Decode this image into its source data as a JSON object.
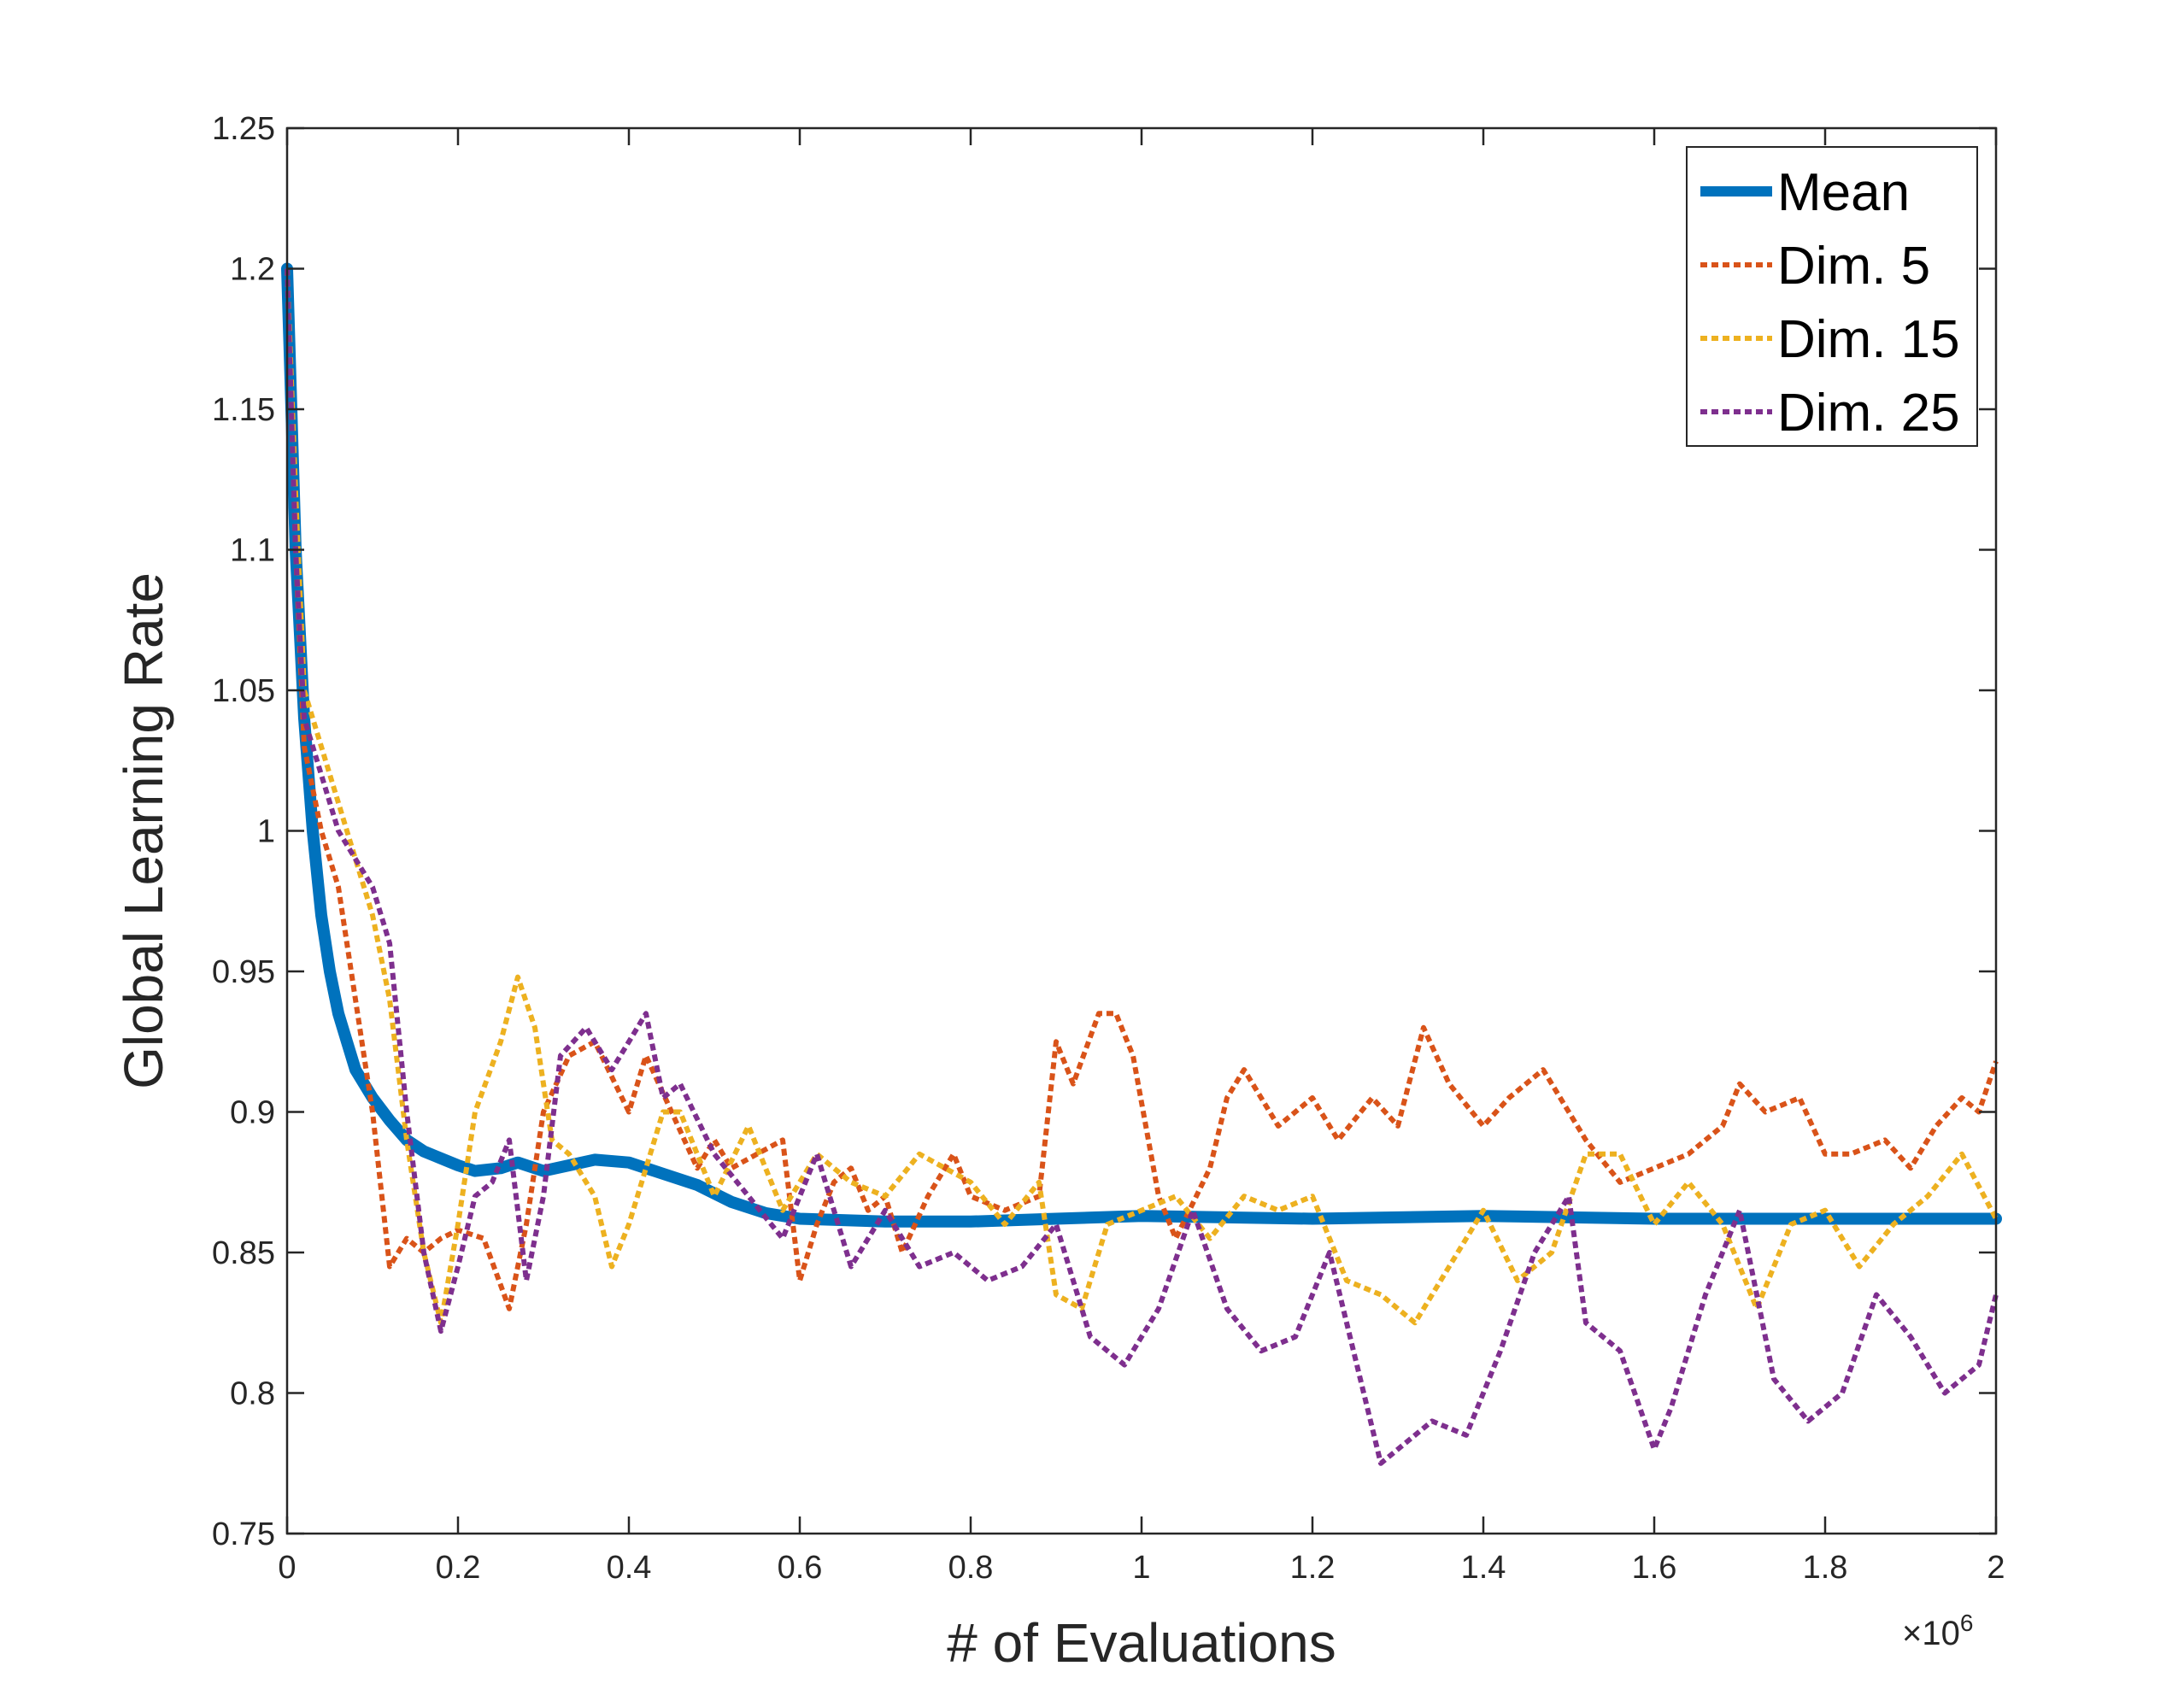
{
  "chart_data": {
    "type": "line",
    "title": "",
    "xlabel": "# of Evaluations",
    "ylabel": "Global Learning Rate",
    "x_multiplier_label": "×10",
    "x_multiplier_exponent": "6",
    "xlim": [
      0,
      2
    ],
    "ylim": [
      0.75,
      1.25
    ],
    "x_ticks": [
      "0",
      "0.2",
      "0.4",
      "0.6",
      "0.8",
      "1",
      "1.2",
      "1.4",
      "1.6",
      "1.8",
      "2"
    ],
    "y_ticks": [
      "0.75",
      "0.8",
      "0.85",
      "0.9",
      "0.95",
      "1",
      "1.05",
      "1.1",
      "1.15",
      "1.2",
      "1.25"
    ],
    "grid": false,
    "legend_position": "top-right",
    "series": [
      {
        "name": "Mean",
        "color": "#0072BD",
        "style": "solid",
        "x": [
          0,
          0.01,
          0.02,
          0.03,
          0.04,
          0.05,
          0.06,
          0.07,
          0.08,
          0.1,
          0.12,
          0.14,
          0.16,
          0.2,
          0.22,
          0.25,
          0.27,
          0.3,
          0.33,
          0.36,
          0.4,
          0.44,
          0.48,
          0.52,
          0.56,
          0.6,
          0.7,
          0.8,
          0.9,
          1.0,
          1.2,
          1.4,
          1.6,
          1.8,
          2.0
        ],
        "values": [
          1.2,
          1.1,
          1.04,
          1.0,
          0.97,
          0.95,
          0.935,
          0.925,
          0.915,
          0.905,
          0.897,
          0.89,
          0.886,
          0.881,
          0.879,
          0.88,
          0.882,
          0.879,
          0.881,
          0.883,
          0.882,
          0.878,
          0.874,
          0.868,
          0.864,
          0.862,
          0.861,
          0.861,
          0.862,
          0.863,
          0.862,
          0.863,
          0.862,
          0.862,
          0.862
        ]
      },
      {
        "name": "Dim. 5",
        "color": "#D95319",
        "style": "dotted",
        "x": [
          0,
          0.01,
          0.02,
          0.04,
          0.06,
          0.08,
          0.1,
          0.12,
          0.14,
          0.16,
          0.18,
          0.2,
          0.23,
          0.26,
          0.28,
          0.3,
          0.33,
          0.36,
          0.4,
          0.42,
          0.45,
          0.48,
          0.5,
          0.52,
          0.55,
          0.58,
          0.6,
          0.62,
          0.64,
          0.66,
          0.68,
          0.7,
          0.72,
          0.75,
          0.78,
          0.8,
          0.84,
          0.88,
          0.9,
          0.92,
          0.95,
          0.97,
          0.99,
          1.02,
          1.04,
          1.08,
          1.1,
          1.12,
          1.16,
          1.2,
          1.23,
          1.27,
          1.3,
          1.33,
          1.36,
          1.4,
          1.43,
          1.47,
          1.5,
          1.52,
          1.56,
          1.6,
          1.64,
          1.68,
          1.7,
          1.73,
          1.77,
          1.8,
          1.83,
          1.87,
          1.9,
          1.93,
          1.96,
          1.98,
          2.0
        ],
        "values": [
          1.2,
          1.1,
          1.03,
          1.0,
          0.98,
          0.94,
          0.9,
          0.845,
          0.855,
          0.85,
          0.855,
          0.858,
          0.855,
          0.83,
          0.86,
          0.9,
          0.92,
          0.925,
          0.9,
          0.92,
          0.9,
          0.88,
          0.89,
          0.88,
          0.885,
          0.89,
          0.84,
          0.86,
          0.875,
          0.88,
          0.865,
          0.87,
          0.85,
          0.87,
          0.885,
          0.87,
          0.865,
          0.87,
          0.925,
          0.91,
          0.935,
          0.935,
          0.92,
          0.87,
          0.855,
          0.88,
          0.905,
          0.915,
          0.895,
          0.905,
          0.89,
          0.905,
          0.895,
          0.93,
          0.91,
          0.895,
          0.905,
          0.915,
          0.9,
          0.89,
          0.875,
          0.88,
          0.885,
          0.895,
          0.91,
          0.9,
          0.905,
          0.885,
          0.885,
          0.89,
          0.88,
          0.895,
          0.905,
          0.9,
          0.918
        ]
      },
      {
        "name": "Dim. 15",
        "color": "#EDB120",
        "style": "dotted",
        "x": [
          0,
          0.01,
          0.02,
          0.04,
          0.06,
          0.08,
          0.1,
          0.12,
          0.14,
          0.16,
          0.18,
          0.2,
          0.22,
          0.25,
          0.27,
          0.29,
          0.31,
          0.33,
          0.36,
          0.38,
          0.4,
          0.42,
          0.44,
          0.46,
          0.5,
          0.54,
          0.58,
          0.62,
          0.66,
          0.7,
          0.74,
          0.8,
          0.84,
          0.88,
          0.9,
          0.93,
          0.96,
          1.0,
          1.04,
          1.08,
          1.12,
          1.16,
          1.2,
          1.24,
          1.28,
          1.32,
          1.36,
          1.4,
          1.44,
          1.48,
          1.52,
          1.56,
          1.6,
          1.64,
          1.68,
          1.72,
          1.76,
          1.8,
          1.84,
          1.88,
          1.92,
          1.96,
          2.0
        ],
        "values": [
          1.2,
          1.12,
          1.05,
          1.03,
          1.01,
          0.99,
          0.97,
          0.94,
          0.89,
          0.85,
          0.825,
          0.86,
          0.9,
          0.925,
          0.948,
          0.93,
          0.89,
          0.885,
          0.87,
          0.845,
          0.86,
          0.88,
          0.9,
          0.9,
          0.87,
          0.895,
          0.865,
          0.885,
          0.875,
          0.87,
          0.885,
          0.875,
          0.86,
          0.875,
          0.835,
          0.83,
          0.86,
          0.865,
          0.87,
          0.855,
          0.87,
          0.865,
          0.87,
          0.84,
          0.835,
          0.825,
          0.845,
          0.865,
          0.84,
          0.85,
          0.885,
          0.885,
          0.86,
          0.875,
          0.86,
          0.83,
          0.86,
          0.865,
          0.845,
          0.86,
          0.87,
          0.885,
          0.862
        ]
      },
      {
        "name": "Dim. 25",
        "color": "#7E2F8E",
        "style": "dotted",
        "x": [
          0,
          0.01,
          0.02,
          0.04,
          0.06,
          0.08,
          0.1,
          0.12,
          0.14,
          0.16,
          0.18,
          0.2,
          0.22,
          0.24,
          0.26,
          0.28,
          0.3,
          0.32,
          0.35,
          0.38,
          0.4,
          0.42,
          0.44,
          0.46,
          0.5,
          0.54,
          0.58,
          0.62,
          0.66,
          0.7,
          0.74,
          0.78,
          0.82,
          0.86,
          0.9,
          0.94,
          0.98,
          1.02,
          1.06,
          1.1,
          1.14,
          1.18,
          1.22,
          1.26,
          1.28,
          1.3,
          1.34,
          1.38,
          1.42,
          1.46,
          1.5,
          1.52,
          1.56,
          1.6,
          1.62,
          1.66,
          1.7,
          1.74,
          1.78,
          1.82,
          1.86,
          1.9,
          1.94,
          1.98,
          2.0
        ],
        "values": [
          1.2,
          1.1,
          1.04,
          1.02,
          1.0,
          0.99,
          0.98,
          0.96,
          0.9,
          0.85,
          0.822,
          0.845,
          0.87,
          0.875,
          0.89,
          0.84,
          0.87,
          0.92,
          0.93,
          0.915,
          0.925,
          0.935,
          0.905,
          0.91,
          0.885,
          0.87,
          0.855,
          0.885,
          0.845,
          0.865,
          0.845,
          0.85,
          0.84,
          0.845,
          0.86,
          0.82,
          0.81,
          0.83,
          0.865,
          0.83,
          0.815,
          0.82,
          0.85,
          0.8,
          0.775,
          0.78,
          0.79,
          0.785,
          0.815,
          0.85,
          0.87,
          0.825,
          0.815,
          0.78,
          0.795,
          0.835,
          0.865,
          0.805,
          0.79,
          0.8,
          0.835,
          0.82,
          0.8,
          0.81,
          0.835
        ]
      }
    ]
  }
}
